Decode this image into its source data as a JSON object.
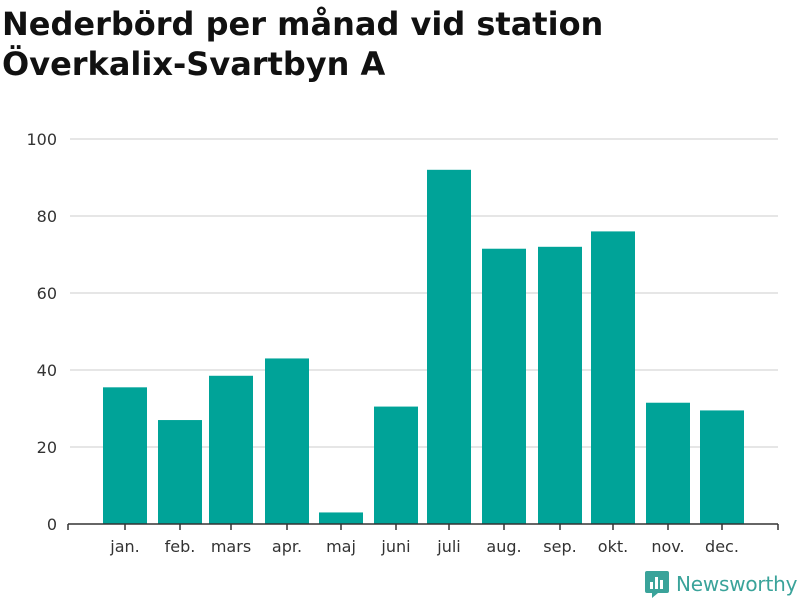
{
  "title_line1": "Nederbörd per månad vid station",
  "title_line2": "Överkalix-Svartbyn A",
  "brand": {
    "name": "Newsworthy",
    "color": "#3aa39a"
  },
  "chart_data": {
    "type": "bar",
    "categories": [
      "jan.",
      "feb.",
      "mars",
      "apr.",
      "maj",
      "juni",
      "juli",
      "aug.",
      "sep.",
      "okt.",
      "nov.",
      "dec."
    ],
    "values": [
      35.5,
      27,
      38.5,
      43,
      3,
      30.5,
      92,
      71.5,
      72,
      76,
      31.5,
      29.5
    ],
    "ylim": [
      0,
      100
    ],
    "yticks": [
      0,
      20,
      40,
      60,
      80,
      100
    ],
    "bar_color": "#00a398",
    "grid": true
  }
}
